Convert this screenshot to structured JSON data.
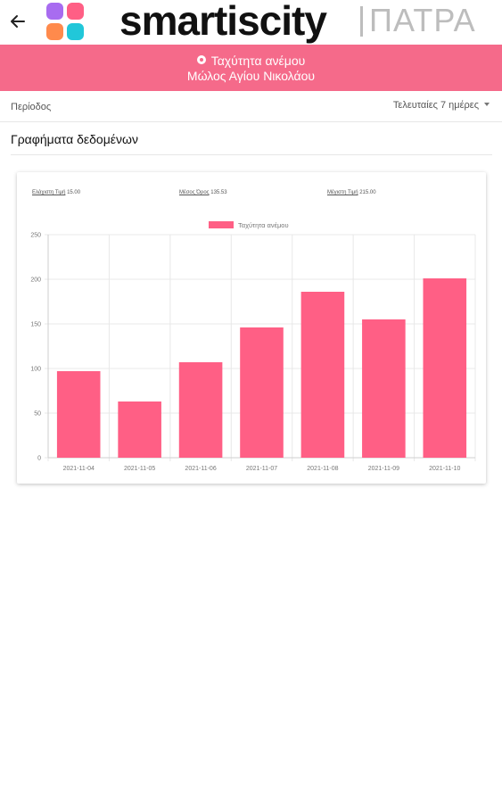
{
  "header": {
    "back_icon": "arrow-left-icon",
    "logo_icon": "smartiscity-logo-icon",
    "brand": "smartiscity",
    "city": "ΠΑΤΡΑ"
  },
  "banner": {
    "icon": "location-pin-icon",
    "line1": "Ταχύτητα ανέμου",
    "line2": "Μώλος Αγίου Νικολάου",
    "color": "#f56a8a"
  },
  "period": {
    "label": "Περίοδος",
    "selected": "Τελευταίες 7 ημέρες"
  },
  "section": {
    "title": "Γραφήματα δεδομένων"
  },
  "stats": {
    "min_label": "Ελάχιστη Τιμή",
    "min_value": "15.00",
    "avg_label": "Μέσος Όρος",
    "avg_value": "135.53",
    "max_label": "Μέγιστη Τιμή",
    "max_value": "215.00"
  },
  "chart_data": {
    "type": "bar",
    "categories": [
      "2021-11-04",
      "2021-11-05",
      "2021-11-06",
      "2021-11-07",
      "2021-11-08",
      "2021-11-09",
      "2021-11-10"
    ],
    "series": [
      {
        "name": "Ταχύτητα ανέμου",
        "values": [
          97,
          63,
          107,
          146,
          186,
          155,
          201
        ],
        "color": "#ff5f85"
      }
    ],
    "title": "",
    "xlabel": "",
    "ylabel": "",
    "ylim": [
      0,
      250
    ],
    "yticks": [
      0,
      50,
      100,
      150,
      200,
      250
    ],
    "grid": true,
    "legend": "top-center"
  }
}
